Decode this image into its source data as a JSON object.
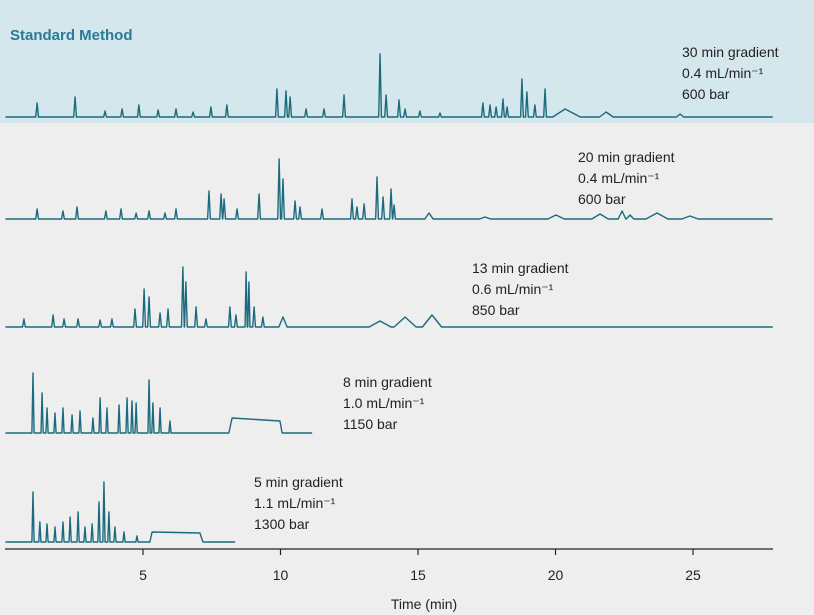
{
  "chart_data": {
    "type": "line",
    "title": "Standard Method",
    "xlabel": "Time (min)",
    "xlim": [
      0,
      27.9
    ],
    "xticks": [
      5,
      10,
      15,
      20,
      25
    ],
    "ylim": [
      0,
      70
    ],
    "series": [
      {
        "name": "30 min gradient",
        "details": [
          "0.4 mL/min⁻¹",
          "600 bar"
        ],
        "color": "#1b6a7e",
        "x": [
          0,
          1.1,
          1.15,
          1.2,
          2.48,
          2.53,
          2.58,
          3.57,
          3.62,
          3.67,
          4.19,
          4.24,
          4.29,
          4.8,
          4.85,
          4.9,
          5.5,
          5.55,
          5.6,
          6.15,
          6.2,
          6.25,
          6.77,
          6.82,
          6.87,
          7.42,
          7.47,
          7.52,
          8.0,
          8.05,
          8.1,
          9.82,
          9.87,
          9.92,
          10.15,
          10.2,
          10.25,
          10.3,
          10.35,
          10.4,
          10.88,
          10.93,
          10.98,
          11.53,
          11.58,
          11.63,
          12.26,
          12.31,
          12.36,
          13.57,
          13.62,
          13.67,
          13.79,
          13.84,
          13.89,
          14.26,
          14.31,
          14.36,
          14.48,
          14.53,
          14.58,
          15.02,
          15.07,
          15.12,
          15.75,
          15.8,
          15.85,
          17.31,
          17.36,
          17.41,
          17.57,
          17.62,
          17.67,
          17.79,
          17.84,
          17.89,
          18.04,
          18.09,
          18.14,
          18.19,
          18.24,
          18.29,
          18.73,
          18.78,
          18.83,
          18.91,
          18.96,
          19.01,
          19.2,
          19.25,
          19.3,
          19.57,
          19.62,
          19.67,
          19.9,
          20.35,
          20.9,
          21.6,
          21.84,
          22.1,
          24.4,
          24.53,
          24.66,
          27.9
        ],
        "values": [
          0,
          0,
          14,
          0,
          0,
          20,
          0,
          0,
          6,
          0,
          0,
          8,
          0,
          0,
          12,
          0,
          0,
          7,
          0,
          0,
          8,
          0,
          0,
          5,
          0,
          0,
          10,
          0,
          0,
          12,
          0,
          0,
          28,
          0,
          0,
          26,
          0,
          0,
          20,
          0,
          0,
          8,
          0,
          0,
          8,
          0,
          0,
          22,
          0,
          0,
          63,
          0,
          0,
          22,
          0,
          0,
          17,
          0,
          0,
          8,
          0,
          0,
          6,
          0,
          0,
          4,
          0,
          0,
          14,
          0,
          0,
          12,
          0,
          0,
          10,
          0,
          0,
          18,
          0,
          0,
          10,
          0,
          0,
          38,
          0,
          0,
          25,
          0,
          0,
          12,
          0,
          0,
          28,
          0,
          0,
          8,
          0,
          0,
          5,
          0,
          0,
          3,
          0,
          0
        ]
      },
      {
        "name": "20 min gradient",
        "details": [
          "0.4 mL/min⁻¹",
          "600 bar"
        ],
        "color": "#1b6a7e",
        "x": [
          0,
          1.1,
          1.15,
          1.2,
          2.04,
          2.09,
          2.14,
          2.55,
          2.6,
          2.65,
          3.6,
          3.65,
          3.7,
          4.15,
          4.2,
          4.25,
          4.7,
          4.75,
          4.8,
          5.17,
          5.22,
          5.27,
          5.75,
          5.8,
          5.85,
          6.15,
          6.2,
          6.25,
          7.35,
          7.4,
          7.45,
          7.79,
          7.84,
          7.89,
          7.9,
          7.95,
          8.0,
          8.37,
          8.42,
          8.47,
          9.17,
          9.22,
          9.27,
          9.9,
          9.95,
          10.0,
          10.04,
          10.09,
          10.14,
          10.48,
          10.53,
          10.58,
          10.66,
          10.71,
          10.76,
          11.46,
          11.51,
          11.56,
          12.55,
          12.6,
          12.65,
          12.73,
          12.78,
          12.83,
          12.99,
          13.04,
          13.09,
          13.46,
          13.51,
          13.56,
          13.68,
          13.73,
          13.78,
          13.97,
          14.02,
          14.07,
          14.08,
          14.13,
          14.18,
          15.25,
          15.4,
          15.55,
          17.24,
          17.44,
          17.64,
          19.72,
          20.02,
          20.32,
          21.32,
          21.62,
          21.92,
          22.28,
          22.42,
          22.56,
          22.57,
          22.71,
          22.85,
          23.29,
          23.69,
          24.09,
          24.59,
          24.89,
          25.19,
          27.9
        ],
        "values": [
          0,
          0,
          10,
          0,
          0,
          8,
          0,
          0,
          12,
          0,
          0,
          8,
          0,
          0,
          10,
          0,
          0,
          6,
          0,
          0,
          8,
          0,
          0,
          6,
          0,
          0,
          10,
          0,
          0,
          28,
          0,
          0,
          25,
          0,
          0,
          20,
          0,
          0,
          10,
          0,
          0,
          25,
          0,
          0,
          60,
          0,
          0,
          40,
          0,
          0,
          18,
          0,
          0,
          12,
          0,
          0,
          10,
          0,
          0,
          20,
          0,
          0,
          12,
          0,
          0,
          15,
          0,
          0,
          42,
          0,
          0,
          22,
          0,
          0,
          30,
          0,
          0,
          14,
          0,
          0,
          6,
          0,
          0,
          2,
          0,
          0,
          4,
          0,
          0,
          5,
          0,
          0,
          8,
          0,
          0,
          4,
          0,
          0,
          6,
          0,
          0,
          3,
          0,
          0
        ]
      },
      {
        "name": "13 min gradient",
        "details": [
          "0.6 mL/min⁻¹",
          "850 bar"
        ],
        "color": "#1b6a7e",
        "x": [
          0,
          0.62,
          0.67,
          0.72,
          1.68,
          1.73,
          1.78,
          2.08,
          2.13,
          2.18,
          2.59,
          2.64,
          2.69,
          3.39,
          3.44,
          3.49,
          3.82,
          3.87,
          3.92,
          4.66,
          4.71,
          4.76,
          4.99,
          5.04,
          5.09,
          5.17,
          5.22,
          5.27,
          5.57,
          5.62,
          5.67,
          5.86,
          5.91,
          5.96,
          6.4,
          6.45,
          6.5,
          6.51,
          6.56,
          6.61,
          6.88,
          6.93,
          6.98,
          7.24,
          7.29,
          7.34,
          8.11,
          8.16,
          8.21,
          8.33,
          8.38,
          8.43,
          8.71,
          8.75,
          8.79,
          8.81,
          8.85,
          8.89,
          8.99,
          9.04,
          9.09,
          9.31,
          9.36,
          9.41,
          9.94,
          10.09,
          10.24,
          13.22,
          13.62,
          14.02,
          14.13,
          14.53,
          14.93,
          15.16,
          15.51,
          15.86,
          27.9
        ],
        "values": [
          0,
          0,
          8,
          0,
          0,
          12,
          0,
          0,
          8,
          0,
          0,
          8,
          0,
          0,
          7,
          0,
          0,
          8,
          0,
          0,
          18,
          0,
          0,
          38,
          0,
          0,
          30,
          0,
          0,
          14,
          0,
          0,
          18,
          0,
          0,
          60,
          0,
          0,
          45,
          0,
          0,
          20,
          0,
          0,
          8,
          0,
          0,
          20,
          0,
          0,
          12,
          0,
          0,
          55,
          0,
          0,
          45,
          0,
          0,
          20,
          0,
          0,
          10,
          0,
          0,
          10,
          0,
          0,
          6,
          0,
          0,
          10,
          0,
          0,
          12,
          0,
          0
        ]
      },
      {
        "name": "8 min gradient",
        "details": [
          "1.0 mL/min⁻¹",
          "1150 bar"
        ],
        "color": "#1b6a7e",
        "x": [
          0,
          0.96,
          1.0,
          1.04,
          1.29,
          1.33,
          1.37,
          1.47,
          1.51,
          1.55,
          1.76,
          1.8,
          1.84,
          2.05,
          2.09,
          2.13,
          2.38,
          2.42,
          2.46,
          2.67,
          2.71,
          2.75,
          3.14,
          3.18,
          3.22,
          3.4,
          3.44,
          3.48,
          3.65,
          3.69,
          3.73,
          4.09,
          4.13,
          4.17,
          4.38,
          4.42,
          4.46,
          4.56,
          4.6,
          4.64,
          4.71,
          4.75,
          4.79,
          5.18,
          5.22,
          5.26,
          5.32,
          5.36,
          5.4,
          5.58,
          5.62,
          5.66,
          5.94,
          5.98,
          6.02,
          8.12,
          8.24,
          9.98,
          10.06,
          11.15
        ],
        "values": [
          0,
          0,
          60,
          0,
          0,
          40,
          0,
          0,
          25,
          0,
          0,
          20,
          0,
          0,
          25,
          0,
          0,
          18,
          0,
          0,
          22,
          0,
          0,
          15,
          0,
          0,
          35,
          0,
          0,
          25,
          0,
          0,
          28,
          0,
          0,
          35,
          0,
          0,
          32,
          0,
          0,
          30,
          0,
          0,
          53,
          0,
          0,
          30,
          0,
          0,
          25,
          0,
          0,
          12,
          0,
          0,
          15,
          12,
          0,
          0
        ]
      },
      {
        "name": "5 min gradient",
        "details": [
          "1.1 mL/min⁻¹",
          "1300 bar"
        ],
        "color": "#1b6a7e",
        "x": [
          0,
          0.96,
          1.0,
          1.04,
          1.21,
          1.25,
          1.29,
          1.47,
          1.51,
          1.55,
          1.76,
          1.8,
          1.84,
          2.05,
          2.09,
          2.13,
          2.31,
          2.35,
          2.39,
          2.6,
          2.64,
          2.68,
          2.85,
          2.89,
          2.93,
          3.11,
          3.15,
          3.19,
          3.36,
          3.4,
          3.44,
          3.54,
          3.58,
          3.62,
          3.72,
          3.76,
          3.8,
          3.94,
          3.98,
          4.02,
          4.27,
          4.31,
          4.35,
          4.74,
          4.78,
          4.82,
          5.25,
          5.33,
          7.07,
          7.18,
          8.35
        ],
        "values": [
          0,
          0,
          50,
          0,
          0,
          20,
          0,
          0,
          18,
          0,
          0,
          15,
          0,
          0,
          20,
          0,
          0,
          25,
          0,
          0,
          30,
          0,
          0,
          15,
          0,
          0,
          18,
          0,
          0,
          40,
          0,
          0,
          60,
          0,
          0,
          30,
          0,
          0,
          15,
          0,
          0,
          10,
          0,
          0,
          6,
          0,
          0,
          10,
          9,
          0,
          0
        ]
      }
    ]
  }
}
